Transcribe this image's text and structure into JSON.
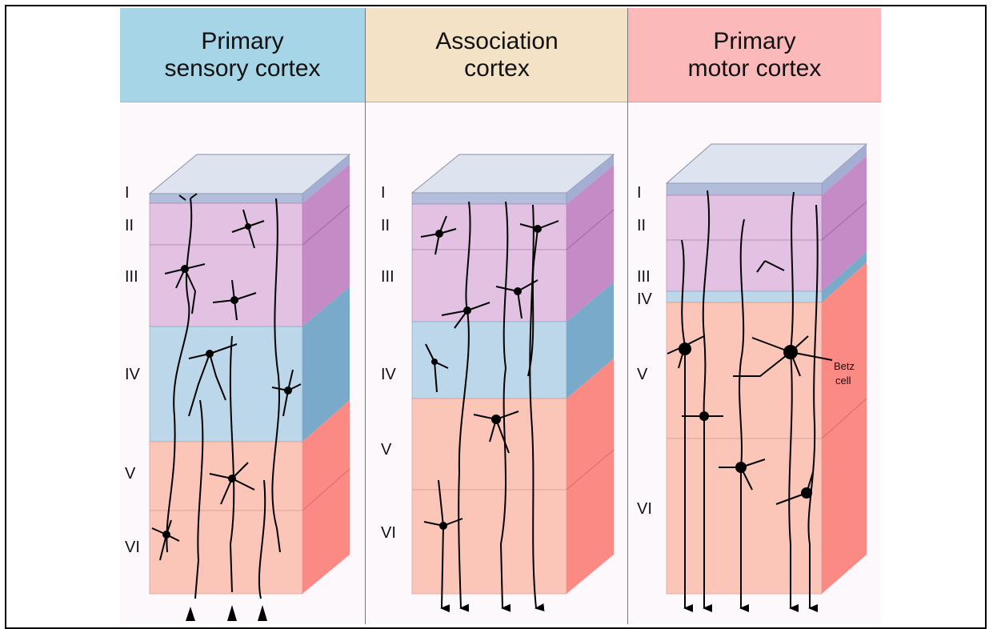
{
  "panels": [
    {
      "title_line1": "Primary",
      "title_line2": "sensory cortex",
      "header_color": "#a6d5e8",
      "layers": [
        "I",
        "II",
        "III",
        "IV",
        "V",
        "VI"
      ]
    },
    {
      "title_line1": "Association",
      "title_line2": "cortex",
      "header_color": "#f3e2c6",
      "layers": [
        "I",
        "II",
        "III",
        "IV",
        "V",
        "VI"
      ]
    },
    {
      "title_line1": "Primary",
      "title_line2": "motor cortex",
      "header_color": "#fcb9b9",
      "layers": [
        "I",
        "II",
        "III",
        "IV",
        "V",
        "VI"
      ],
      "betz_label_line1": "Betz",
      "betz_label_line2": "cell"
    }
  ],
  "colors": {
    "layer_I": "#b2bddc",
    "layer_II_III": "#e3c1e3",
    "layer_IV": "#bcd7e9",
    "layer_V_VI": "#fbc6b8",
    "top_face": "#dde3ef",
    "side_purple": "#c58bc6",
    "side_blue": "#7aaac9",
    "side_red": "#fb8a85",
    "neuron": "#000000"
  }
}
